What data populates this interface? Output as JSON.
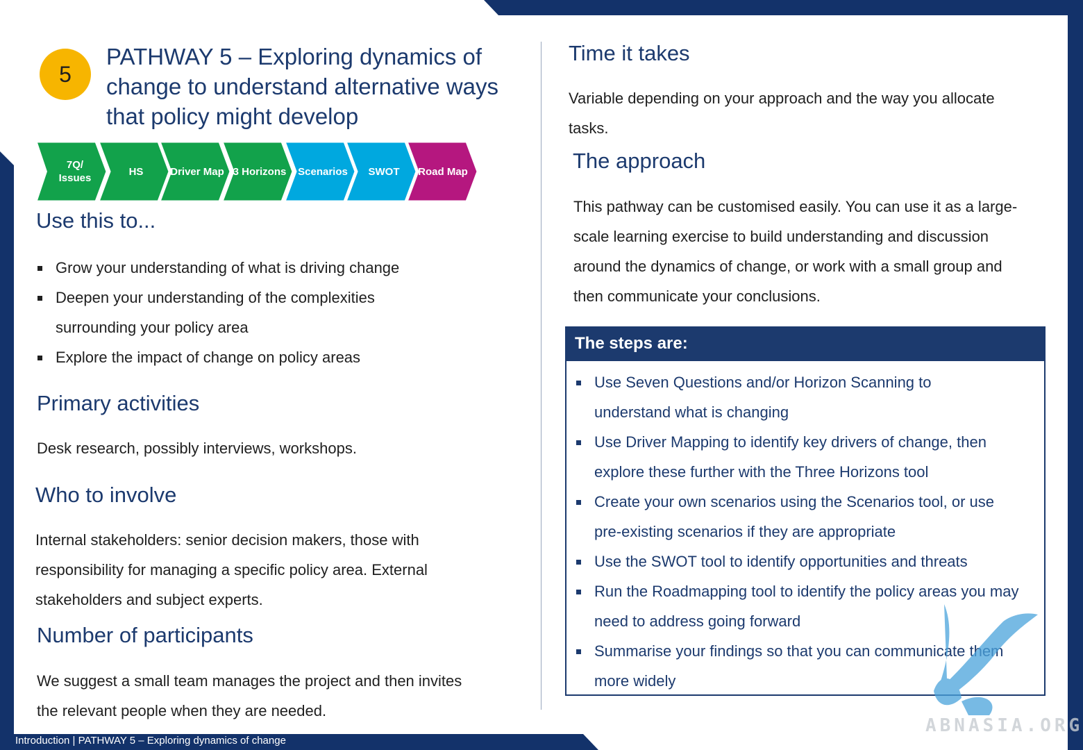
{
  "badge": "5",
  "title": "PATHWAY 5 – Exploring dynamics of change to understand alternative ways that policy might develop",
  "colors": {
    "navy": "#1c3a6e",
    "green": "#12a24b",
    "cyan": "#00a8df",
    "magenta": "#b5177f",
    "badge": "#f7b500"
  },
  "chevrons": [
    {
      "label": "7Q/\nIssues",
      "color": "green"
    },
    {
      "label": "HS",
      "color": "green"
    },
    {
      "label": "Driver Map",
      "color": "green"
    },
    {
      "label": "3 Horizons",
      "color": "green"
    },
    {
      "label": "Scenarios",
      "color": "cyan"
    },
    {
      "label": "SWOT",
      "color": "cyan"
    },
    {
      "label": "Road Map",
      "color": "magenta"
    }
  ],
  "use_this": {
    "heading": "Use this to...",
    "items": [
      "Grow your understanding of what is driving change",
      "Deepen your understanding of the complexities surrounding your policy area",
      "Explore the impact of change on policy areas"
    ]
  },
  "primary": {
    "heading": "Primary activities",
    "text": "Desk research, possibly interviews, workshops."
  },
  "who": {
    "heading": "Who to involve",
    "text": "Internal stakeholders: senior decision makers, those with responsibility for managing a specific policy area. External stakeholders and subject experts."
  },
  "participants": {
    "heading": "Number of participants",
    "text": "We suggest a small team manages the project and then invites the relevant people when they are needed."
  },
  "time": {
    "heading": "Time it takes",
    "text": "Variable depending on your approach and the way you allocate tasks."
  },
  "approach": {
    "heading": "The approach",
    "text": "This pathway can be customised easily. You can use it as a large-scale learning exercise to build understanding and discussion around the dynamics of change, or work with a small group and then communicate your conclusions."
  },
  "steps": {
    "heading": "The steps are:",
    "items": [
      "Use Seven Questions and/or Horizon Scanning to understand what is changing",
      "Use Driver Mapping to identify key drivers of change, then explore these further with the Three Horizons tool",
      "Create your own scenarios using the Scenarios tool, or use pre-existing scenarios if they are appropriate",
      "Use the SWOT tool to identify opportunities and threats",
      "Run the Roadmapping tool to identify the policy areas you may need to address going forward",
      "Summarise your findings so that you can communicate them more widely"
    ]
  },
  "footer": "Introduction | PATHWAY 5 – Exploring dynamics of change",
  "watermark": "ABNASIA.ORG"
}
